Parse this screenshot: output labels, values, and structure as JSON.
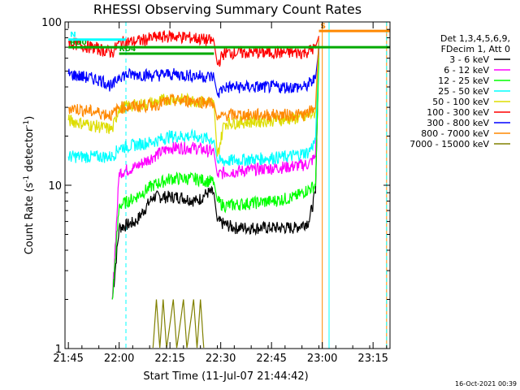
{
  "chart_data": {
    "type": "line",
    "title": "RHESSI Observing Summary Count Rates",
    "xlabel": "Start Time (11-Jul-07 21:44:42)",
    "ylabel_prefix": "Count Rate (s",
    "ylabel_sup": "-1",
    "ylabel_suffix": " detector",
    "ylabel_end": ")",
    "yscale": "log",
    "ylim": [
      1,
      100
    ],
    "xlim": [
      "21:44",
      "23:20"
    ],
    "x_ticks": [
      "21:45",
      "22:00",
      "22:15",
      "22:30",
      "22:45",
      "23:00",
      "23:15"
    ],
    "y_ticks": [
      "1",
      "10",
      "100"
    ],
    "legend_header": [
      "Det 1,3,4,5,6,9,",
      "FDecim 1, Att 0"
    ],
    "legend_placement": "right",
    "series": [
      {
        "name": "3 - 6 keV",
        "color": "#000000",
        "points": [
          [
            "21:58",
            2
          ],
          [
            "22:00",
            5.5
          ],
          [
            "22:05",
            6
          ],
          [
            "22:10",
            8.5
          ],
          [
            "22:18",
            8.5
          ],
          [
            "22:23",
            8
          ],
          [
            "22:26",
            9
          ],
          [
            "22:28",
            9
          ],
          [
            "22:29",
            6
          ],
          [
            "22:34",
            5.5
          ],
          [
            "22:45",
            5.5
          ],
          [
            "22:52",
            5.5
          ],
          [
            "22:56",
            6
          ],
          [
            "22:58",
            9
          ],
          [
            "22:59",
            70
          ]
        ]
      },
      {
        "name": "6 - 12 keV",
        "color": "#ff00ff",
        "points": [
          [
            "21:58",
            2
          ],
          [
            "22:00",
            12
          ],
          [
            "22:05",
            13
          ],
          [
            "22:10",
            15
          ],
          [
            "22:15",
            17
          ],
          [
            "22:22",
            17
          ],
          [
            "22:28",
            16
          ],
          [
            "22:29",
            11.5
          ],
          [
            "22:31",
            12
          ],
          [
            "22:40",
            12.5
          ],
          [
            "22:50",
            13
          ],
          [
            "22:56",
            13.5
          ],
          [
            "22:58",
            15
          ],
          [
            "22:59",
            80
          ]
        ]
      },
      {
        "name": "12 - 25 keV",
        "color": "#00ff00",
        "points": [
          [
            "21:58",
            2
          ],
          [
            "22:00",
            7.5
          ],
          [
            "22:05",
            8.5
          ],
          [
            "22:10",
            10
          ],
          [
            "22:15",
            11
          ],
          [
            "22:22",
            11
          ],
          [
            "22:28",
            10.5
          ],
          [
            "22:29",
            8
          ],
          [
            "22:31",
            7.5
          ],
          [
            "22:45",
            8
          ],
          [
            "22:52",
            8.5
          ],
          [
            "22:58",
            10
          ],
          [
            "22:59",
            60
          ]
        ]
      },
      {
        "name": "25 - 50 keV",
        "color": "#00ffff",
        "points": [
          [
            "21:45",
            15
          ],
          [
            "21:58",
            15
          ],
          [
            "22:00",
            17
          ],
          [
            "22:10",
            18.5
          ],
          [
            "22:15",
            20
          ],
          [
            "22:22",
            20
          ],
          [
            "22:28",
            19
          ],
          [
            "22:29",
            14
          ],
          [
            "22:40",
            14.5
          ],
          [
            "22:50",
            15
          ],
          [
            "22:56",
            16
          ],
          [
            "22:58",
            19
          ],
          [
            "22:59",
            75
          ]
        ]
      },
      {
        "name": "50 - 100 keV",
        "color": "#dddd00",
        "points": [
          [
            "21:45",
            25
          ],
          [
            "21:58",
            22
          ],
          [
            "22:00",
            30
          ],
          [
            "22:10",
            32
          ],
          [
            "22:15",
            34
          ],
          [
            "22:22",
            33
          ],
          [
            "22:28",
            32
          ],
          [
            "22:29",
            15
          ],
          [
            "22:31",
            24
          ],
          [
            "22:45",
            25
          ],
          [
            "22:55",
            26
          ],
          [
            "22:58",
            28
          ],
          [
            "22:59",
            70
          ]
        ]
      },
      {
        "name": "100 - 300 keV",
        "color": "#ff0000",
        "points": [
          [
            "21:45",
            75
          ],
          [
            "21:52",
            70
          ],
          [
            "21:58",
            65
          ],
          [
            "22:00",
            75
          ],
          [
            "22:05",
            76
          ],
          [
            "22:10",
            80
          ],
          [
            "22:15",
            82
          ],
          [
            "22:22",
            80
          ],
          [
            "22:28",
            76
          ],
          [
            "22:29",
            55
          ],
          [
            "22:31",
            65
          ],
          [
            "22:45",
            65
          ],
          [
            "22:55",
            65
          ],
          [
            "22:58",
            70
          ],
          [
            "22:59",
            82
          ]
        ]
      },
      {
        "name": "300 - 800 keV",
        "color": "#0000ff",
        "points": [
          [
            "21:45",
            48
          ],
          [
            "21:55",
            44
          ],
          [
            "21:58",
            40
          ],
          [
            "22:00",
            47
          ],
          [
            "22:05",
            48
          ],
          [
            "22:10",
            47
          ],
          [
            "22:15",
            48
          ],
          [
            "22:22",
            47
          ],
          [
            "22:28",
            46
          ],
          [
            "22:29",
            36
          ],
          [
            "22:31",
            40
          ],
          [
            "22:45",
            40
          ],
          [
            "22:55",
            40
          ],
          [
            "22:58",
            45
          ],
          [
            "22:59",
            70
          ]
        ]
      },
      {
        "name": "800 - 7000 keV",
        "color": "#ff8800",
        "points": [
          [
            "21:45",
            30
          ],
          [
            "21:58",
            27
          ],
          [
            "22:00",
            30
          ],
          [
            "22:10",
            31
          ],
          [
            "22:15",
            33
          ],
          [
            "22:22",
            33
          ],
          [
            "22:28",
            32
          ],
          [
            "22:29",
            25
          ],
          [
            "22:31",
            27
          ],
          [
            "22:45",
            27
          ],
          [
            "22:55",
            27
          ],
          [
            "22:58",
            30
          ],
          [
            "22:59",
            80
          ]
        ]
      },
      {
        "name": "7000 - 15000 keV",
        "color": "#808000",
        "points": [
          [
            "22:10",
            1
          ],
          [
            "22:11",
            2
          ],
          [
            "22:12",
            1
          ],
          [
            "22:13",
            2
          ],
          [
            "22:14",
            1
          ],
          [
            "22:16",
            2
          ],
          [
            "22:17",
            1
          ],
          [
            "22:19",
            2
          ],
          [
            "22:20",
            1
          ],
          [
            "22:22",
            2
          ],
          [
            "22:23",
            1
          ],
          [
            "22:24",
            2
          ],
          [
            "22:25",
            1
          ]
        ]
      }
    ],
    "flag_bars": [
      {
        "label": "RD0",
        "color": "#00aa00",
        "start": "21:45",
        "end": "23:20",
        "value": 70
      },
      {
        "label": "RD4",
        "color": "#00aa00",
        "start": "22:00",
        "end": "22:28",
        "value": 64
      },
      {
        "label": "N",
        "color": "#00ffff",
        "start": "21:45",
        "end": "22:02",
        "value": 78
      },
      {
        "label": "S",
        "color": "#ff8800",
        "start": "22:59",
        "end": "23:20",
        "value": 88
      }
    ],
    "vertical_markers": [
      {
        "time": "22:02",
        "color": "#00ffff",
        "style": "dashed"
      },
      {
        "time": "23:00",
        "color": "#ff8800",
        "style": "solid"
      },
      {
        "time": "23:02",
        "color": "#00ffff",
        "style": "solid"
      },
      {
        "time": "23:19",
        "color": "#ff8800",
        "style": "solid"
      },
      {
        "time": "23:19",
        "color": "#00ffff",
        "style": "dashed"
      }
    ],
    "timestamp": "16-Oct-2021 00:39"
  }
}
